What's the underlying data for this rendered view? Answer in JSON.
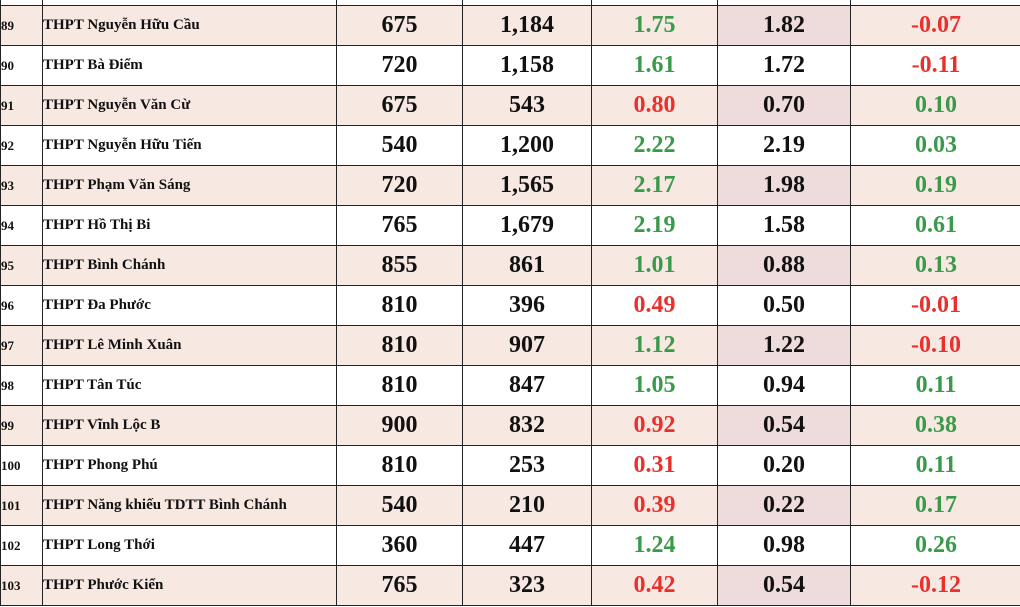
{
  "colors": {
    "shade_row": "#f8e8e2",
    "shade_cell": "#eedcdc",
    "positive": "#3a9a4a",
    "negative": "#e8302c"
  },
  "rows": [
    {
      "stt": "89",
      "name": "THPT Nguyễn Hữu Cầu",
      "quota": "675",
      "registered": "1,184",
      "ratio_new": "1.75",
      "ratio_new_sign": "pos",
      "ratio_old": "1.82",
      "diff": "-0.07",
      "diff_sign": "neg"
    },
    {
      "stt": "90",
      "name": "THPT Bà Điểm",
      "quota": "720",
      "registered": "1,158",
      "ratio_new": "1.61",
      "ratio_new_sign": "pos",
      "ratio_old": "1.72",
      "diff": "-0.11",
      "diff_sign": "neg"
    },
    {
      "stt": "91",
      "name": "THPT Nguyễn Văn Cừ",
      "quota": "675",
      "registered": "543",
      "ratio_new": "0.80",
      "ratio_new_sign": "neg",
      "ratio_old": "0.70",
      "diff": "0.10",
      "diff_sign": "pos"
    },
    {
      "stt": "92",
      "name": "THPT Nguyễn Hữu Tiến",
      "quota": "540",
      "registered": "1,200",
      "ratio_new": "2.22",
      "ratio_new_sign": "pos",
      "ratio_old": "2.19",
      "diff": "0.03",
      "diff_sign": "pos"
    },
    {
      "stt": "93",
      "name": "THPT Phạm Văn Sáng",
      "quota": "720",
      "registered": "1,565",
      "ratio_new": "2.17",
      "ratio_new_sign": "pos",
      "ratio_old": "1.98",
      "diff": "0.19",
      "diff_sign": "pos"
    },
    {
      "stt": "94",
      "name": "THPT Hồ Thị Bi",
      "quota": "765",
      "registered": "1,679",
      "ratio_new": "2.19",
      "ratio_new_sign": "pos",
      "ratio_old": "1.58",
      "diff": "0.61",
      "diff_sign": "pos"
    },
    {
      "stt": "95",
      "name": "THPT Bình Chánh",
      "quota": "855",
      "registered": "861",
      "ratio_new": "1.01",
      "ratio_new_sign": "pos",
      "ratio_old": "0.88",
      "diff": "0.13",
      "diff_sign": "pos"
    },
    {
      "stt": "96",
      "name": "THPT Đa Phước",
      "quota": "810",
      "registered": "396",
      "ratio_new": "0.49",
      "ratio_new_sign": "neg",
      "ratio_old": "0.50",
      "diff": "-0.01",
      "diff_sign": "neg"
    },
    {
      "stt": "97",
      "name": "THPT Lê Minh Xuân",
      "quota": "810",
      "registered": "907",
      "ratio_new": "1.12",
      "ratio_new_sign": "pos",
      "ratio_old": "1.22",
      "diff": "-0.10",
      "diff_sign": "neg"
    },
    {
      "stt": "98",
      "name": "THPT Tân Túc",
      "quota": "810",
      "registered": "847",
      "ratio_new": "1.05",
      "ratio_new_sign": "pos",
      "ratio_old": "0.94",
      "diff": "0.11",
      "diff_sign": "pos"
    },
    {
      "stt": "99",
      "name": "THPT Vĩnh Lộc B",
      "quota": "900",
      "registered": "832",
      "ratio_new": "0.92",
      "ratio_new_sign": "neg",
      "ratio_old": "0.54",
      "diff": "0.38",
      "diff_sign": "pos"
    },
    {
      "stt": "100",
      "name": "THPT Phong Phú",
      "quota": "810",
      "registered": "253",
      "ratio_new": "0.31",
      "ratio_new_sign": "neg",
      "ratio_old": "0.20",
      "diff": "0.11",
      "diff_sign": "pos"
    },
    {
      "stt": "101",
      "name": "THPT Năng khiếu TDTT Bình Chánh",
      "quota": "540",
      "registered": "210",
      "ratio_new": "0.39",
      "ratio_new_sign": "neg",
      "ratio_old": "0.22",
      "diff": "0.17",
      "diff_sign": "pos"
    },
    {
      "stt": "102",
      "name": "THPT Long Thới",
      "quota": "360",
      "registered": "447",
      "ratio_new": "1.24",
      "ratio_new_sign": "pos",
      "ratio_old": "0.98",
      "diff": "0.26",
      "diff_sign": "pos"
    },
    {
      "stt": "103",
      "name": "THPT Phước Kiển",
      "quota": "765",
      "registered": "323",
      "ratio_new": "0.42",
      "ratio_new_sign": "neg",
      "ratio_old": "0.54",
      "diff": "-0.12",
      "diff_sign": "neg"
    }
  ]
}
